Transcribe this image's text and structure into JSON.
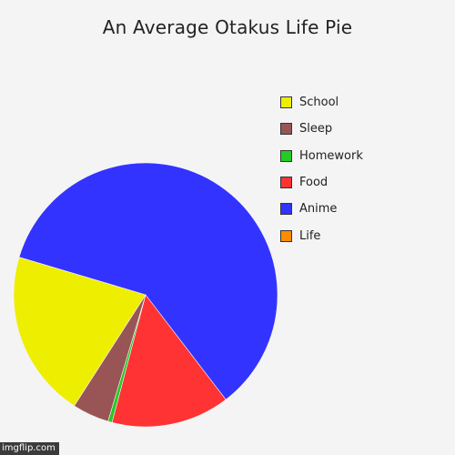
{
  "chart_data": {
    "type": "pie",
    "title": "An Average Otakus Life Pie",
    "slices": [
      {
        "label": "Life",
        "value": 0,
        "color": "#ff8c00"
      },
      {
        "label": "Anime",
        "value": 60,
        "color": "#3333ff"
      },
      {
        "label": "Food",
        "value": 14.5,
        "color": "#ff3333"
      },
      {
        "label": "Homework",
        "value": 0.5,
        "color": "#22cc22"
      },
      {
        "label": "Sleep",
        "value": 4.5,
        "color": "#995555"
      },
      {
        "label": "School",
        "value": 20.5,
        "color": "#eeee00"
      }
    ],
    "legend_order": [
      "School",
      "Sleep",
      "Homework",
      "Food",
      "Anime",
      "Life"
    ],
    "legend_position": "right"
  },
  "watermark": "imgflip.com"
}
